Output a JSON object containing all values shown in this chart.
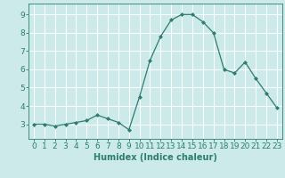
{
  "x": [
    0,
    1,
    2,
    3,
    4,
    5,
    6,
    7,
    8,
    9,
    10,
    11,
    12,
    13,
    14,
    15,
    16,
    17,
    18,
    19,
    20,
    21,
    22,
    23
  ],
  "y": [
    3.0,
    3.0,
    2.9,
    3.0,
    3.1,
    3.2,
    3.5,
    3.3,
    3.1,
    2.7,
    4.5,
    6.5,
    7.8,
    8.7,
    9.0,
    9.0,
    8.6,
    8.0,
    6.0,
    5.8,
    6.4,
    5.5,
    4.7,
    3.9
  ],
  "line_color": "#2e7d6e",
  "marker": "D",
  "marker_size": 2.0,
  "bg_color": "#cceaea",
  "grid_color": "#ffffff",
  "xlabel": "Humidex (Indice chaleur)",
  "xlim": [
    -0.5,
    23.5
  ],
  "ylim": [
    2.2,
    9.6
  ],
  "yticks": [
    3,
    4,
    5,
    6,
    7,
    8,
    9
  ],
  "xtick_labels": [
    "0",
    "1",
    "2",
    "3",
    "4",
    "5",
    "6",
    "7",
    "8",
    "9",
    "10",
    "11",
    "12",
    "13",
    "14",
    "15",
    "16",
    "17",
    "18",
    "19",
    "20",
    "21",
    "22",
    "23"
  ],
  "label_fontsize": 7,
  "tick_fontsize": 6.5
}
